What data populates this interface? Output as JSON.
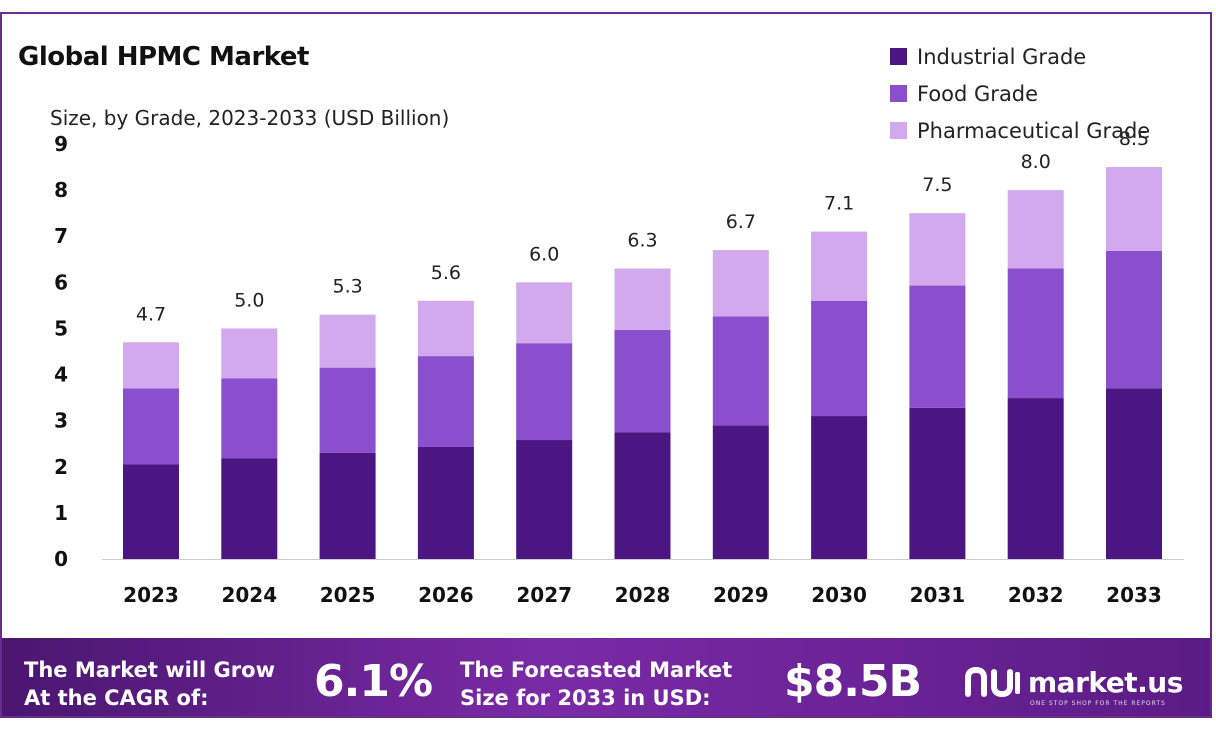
{
  "chart_data": {
    "type": "bar",
    "stacked": true,
    "title": "Global HPMC Market",
    "subtitle": "Size, by Grade, 2023-2033 (USD Billion)",
    "categories": [
      "2023",
      "2024",
      "2025",
      "2026",
      "2027",
      "2028",
      "2029",
      "2030",
      "2031",
      "2032",
      "2033"
    ],
    "series": [
      {
        "name": "Industrial Grade",
        "color": "#4b1682",
        "values": [
          2.05,
          2.18,
          2.3,
          2.43,
          2.58,
          2.75,
          2.9,
          3.1,
          3.28,
          3.49,
          3.7
        ]
      },
      {
        "name": "Food Grade",
        "color": "#8a4fcd",
        "values": [
          1.65,
          1.74,
          1.85,
          1.97,
          2.1,
          2.22,
          2.36,
          2.5,
          2.65,
          2.81,
          2.98
        ]
      },
      {
        "name": "Pharmaceutical Grade",
        "color": "#d1a9ec",
        "values": [
          1.0,
          1.08,
          1.15,
          1.2,
          1.32,
          1.33,
          1.44,
          1.5,
          1.57,
          1.7,
          1.82
        ]
      }
    ],
    "totals": [
      "4.7",
      "5.0",
      "5.3",
      "5.6",
      "6.0",
      "6.3",
      "6.7",
      "7.1",
      "7.5",
      "8.0",
      "8.5"
    ],
    "yticks": [
      0,
      1,
      2,
      3,
      4,
      5,
      6,
      7,
      8,
      9
    ],
    "ylim": [
      0,
      9
    ],
    "legend_position": "top-right",
    "grid": false
  },
  "banner": {
    "cagr_text_line1": "The Market will Grow",
    "cagr_text_line2": "At the CAGR of:",
    "cagr_value": "6.1%",
    "forecast_text_line1": "The Forecasted Market",
    "forecast_text_line2": "Size for 2033 in USD:",
    "forecast_value": "$8.5B",
    "logo_name": "market.us",
    "logo_tagline": "ONE STOP SHOP FOR THE REPORTS"
  },
  "icons": {
    "logo": "market-us-logo-icon"
  }
}
